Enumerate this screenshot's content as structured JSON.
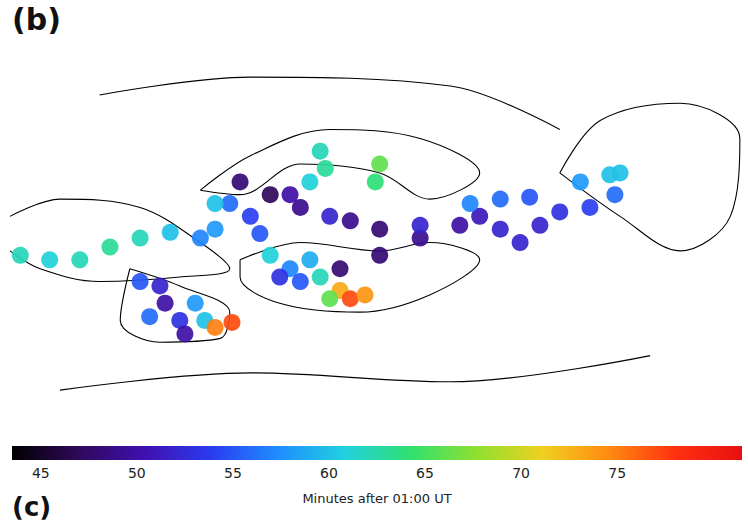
{
  "chart_data": {
    "type": "scatter",
    "panel_label": "(b)",
    "next_panel_label": "(c)",
    "xlim": [
      0,
      100
    ],
    "ylim": [
      0,
      62
    ],
    "tick_labels": false,
    "grid": false,
    "ribbons": [
      [
        44.9,
        26.5,
        48
      ],
      [
        50.3,
        28.6,
        48
      ],
      [
        55.8,
        31.3,
        49
      ],
      [
        61.2,
        33.3,
        50
      ],
      [
        63.9,
        34.7,
        51
      ],
      [
        66.7,
        32.7,
        52
      ],
      [
        69.4,
        30.6,
        52
      ],
      [
        72.1,
        33.3,
        52
      ],
      [
        74.8,
        35.4,
        53
      ],
      [
        78.9,
        36.1,
        54
      ],
      [
        82.3,
        38.1,
        56
      ],
      [
        62.6,
        36.7,
        57
      ],
      [
        66.7,
        37.4,
        56
      ],
      [
        70.7,
        37.7,
        55
      ],
      [
        77.6,
        40.1,
        58
      ],
      [
        81.6,
        41.2,
        60
      ],
      [
        83.0,
        41.5,
        60
      ],
      [
        31.3,
        40.1,
        48
      ],
      [
        35.4,
        38.1,
        47
      ],
      [
        39.5,
        36.1,
        49
      ],
      [
        43.5,
        34.7,
        52
      ],
      [
        46.3,
        34.0,
        49
      ],
      [
        50.3,
        32.7,
        48
      ],
      [
        55.8,
        33.3,
        52
      ],
      [
        32.7,
        34.7,
        54
      ],
      [
        34.0,
        32.0,
        55
      ],
      [
        29.9,
        36.7,
        56
      ],
      [
        38.1,
        38.1,
        50
      ],
      [
        42.2,
        44.9,
        62
      ],
      [
        42.9,
        42.2,
        63
      ],
      [
        40.8,
        40.1,
        61
      ],
      [
        50.3,
        42.9,
        66
      ],
      [
        49.7,
        40.1,
        64
      ],
      [
        27.9,
        36.7,
        60
      ],
      [
        35.4,
        28.6,
        61
      ],
      [
        38.1,
        26.5,
        57
      ],
      [
        40.8,
        27.9,
        59
      ],
      [
        39.5,
        24.5,
        55
      ],
      [
        42.2,
        25.2,
        62
      ],
      [
        44.9,
        23.1,
        73
      ],
      [
        46.3,
        21.8,
        77
      ],
      [
        48.3,
        22.4,
        74
      ],
      [
        43.5,
        21.8,
        66
      ],
      [
        36.7,
        25.2,
        53
      ],
      [
        1.4,
        28.6,
        62
      ],
      [
        5.4,
        27.9,
        61
      ],
      [
        9.5,
        27.9,
        62
      ],
      [
        13.6,
        29.9,
        63
      ],
      [
        17.7,
        31.3,
        62
      ],
      [
        21.8,
        32.2,
        60
      ],
      [
        25.9,
        31.3,
        57
      ],
      [
        27.9,
        32.7,
        58
      ],
      [
        17.7,
        24.5,
        55
      ],
      [
        20.4,
        23.8,
        52
      ],
      [
        21.1,
        21.1,
        50
      ],
      [
        23.1,
        18.4,
        53
      ],
      [
        19.0,
        19.0,
        56
      ],
      [
        25.2,
        21.1,
        58
      ],
      [
        26.5,
        18.4,
        60
      ],
      [
        27.9,
        17.3,
        75
      ],
      [
        30.2,
        18.1,
        77
      ],
      [
        23.8,
        16.3,
        50
      ]
    ],
    "contours": [
      [
        [
          25.9,
          38.8
        ],
        [
          32.7,
          44.2
        ],
        [
          43.5,
          48.3
        ],
        [
          55.8,
          46.9
        ],
        [
          63.9,
          41.5
        ],
        [
          57.1,
          37.4
        ],
        [
          50.3,
          41.5
        ],
        [
          39.5,
          42.9
        ],
        [
          31.3,
          38.1
        ],
        [
          25.9,
          38.8
        ]
      ],
      [
        [
          74.8,
          41.5
        ],
        [
          80.3,
          49.7
        ],
        [
          91.2,
          52.4
        ],
        [
          99.3,
          46.9
        ],
        [
          98.0,
          34.7
        ],
        [
          91.2,
          29.3
        ],
        [
          83.0,
          34.7
        ],
        [
          74.8,
          41.5
        ]
      ],
      [
        [
          0,
          34.7
        ],
        [
          6.8,
          37.4
        ],
        [
          17.7,
          36.1
        ],
        [
          25.9,
          30.6
        ],
        [
          29.9,
          26.5
        ],
        [
          23.1,
          25.2
        ],
        [
          12.2,
          24.5
        ],
        [
          4.1,
          26.5
        ],
        [
          0,
          29.3
        ]
      ],
      [
        [
          31.3,
          27.9
        ],
        [
          39.5,
          30.6
        ],
        [
          50.3,
          29.3
        ],
        [
          57.1,
          30.6
        ],
        [
          63.9,
          27.9
        ],
        [
          57.1,
          22.4
        ],
        [
          47.6,
          19.7
        ],
        [
          36.7,
          21.1
        ],
        [
          31.3,
          25.2
        ],
        [
          31.3,
          27.9
        ]
      ],
      [
        [
          16.3,
          26.5
        ],
        [
          23.1,
          23.8
        ],
        [
          29.9,
          19.7
        ],
        [
          28.6,
          15.6
        ],
        [
          20.4,
          15.0
        ],
        [
          15.0,
          18.4
        ],
        [
          16.3,
          26.5
        ]
      ],
      [
        [
          12.2,
          53.7
        ],
        [
          32.7,
          56.5
        ],
        [
          59.9,
          55.1
        ],
        [
          74.8,
          48.3
        ]
      ],
      [
        [
          6.8,
          7.5
        ],
        [
          32.7,
          10.2
        ],
        [
          59.9,
          8.8
        ],
        [
          87.1,
          12.9
        ]
      ]
    ],
    "colorbar": {
      "range": [
        43.5,
        81.5
      ],
      "ticks": [
        45,
        50,
        55,
        60,
        65,
        70,
        75
      ],
      "label": "Minutes after 01:00 UT"
    }
  }
}
